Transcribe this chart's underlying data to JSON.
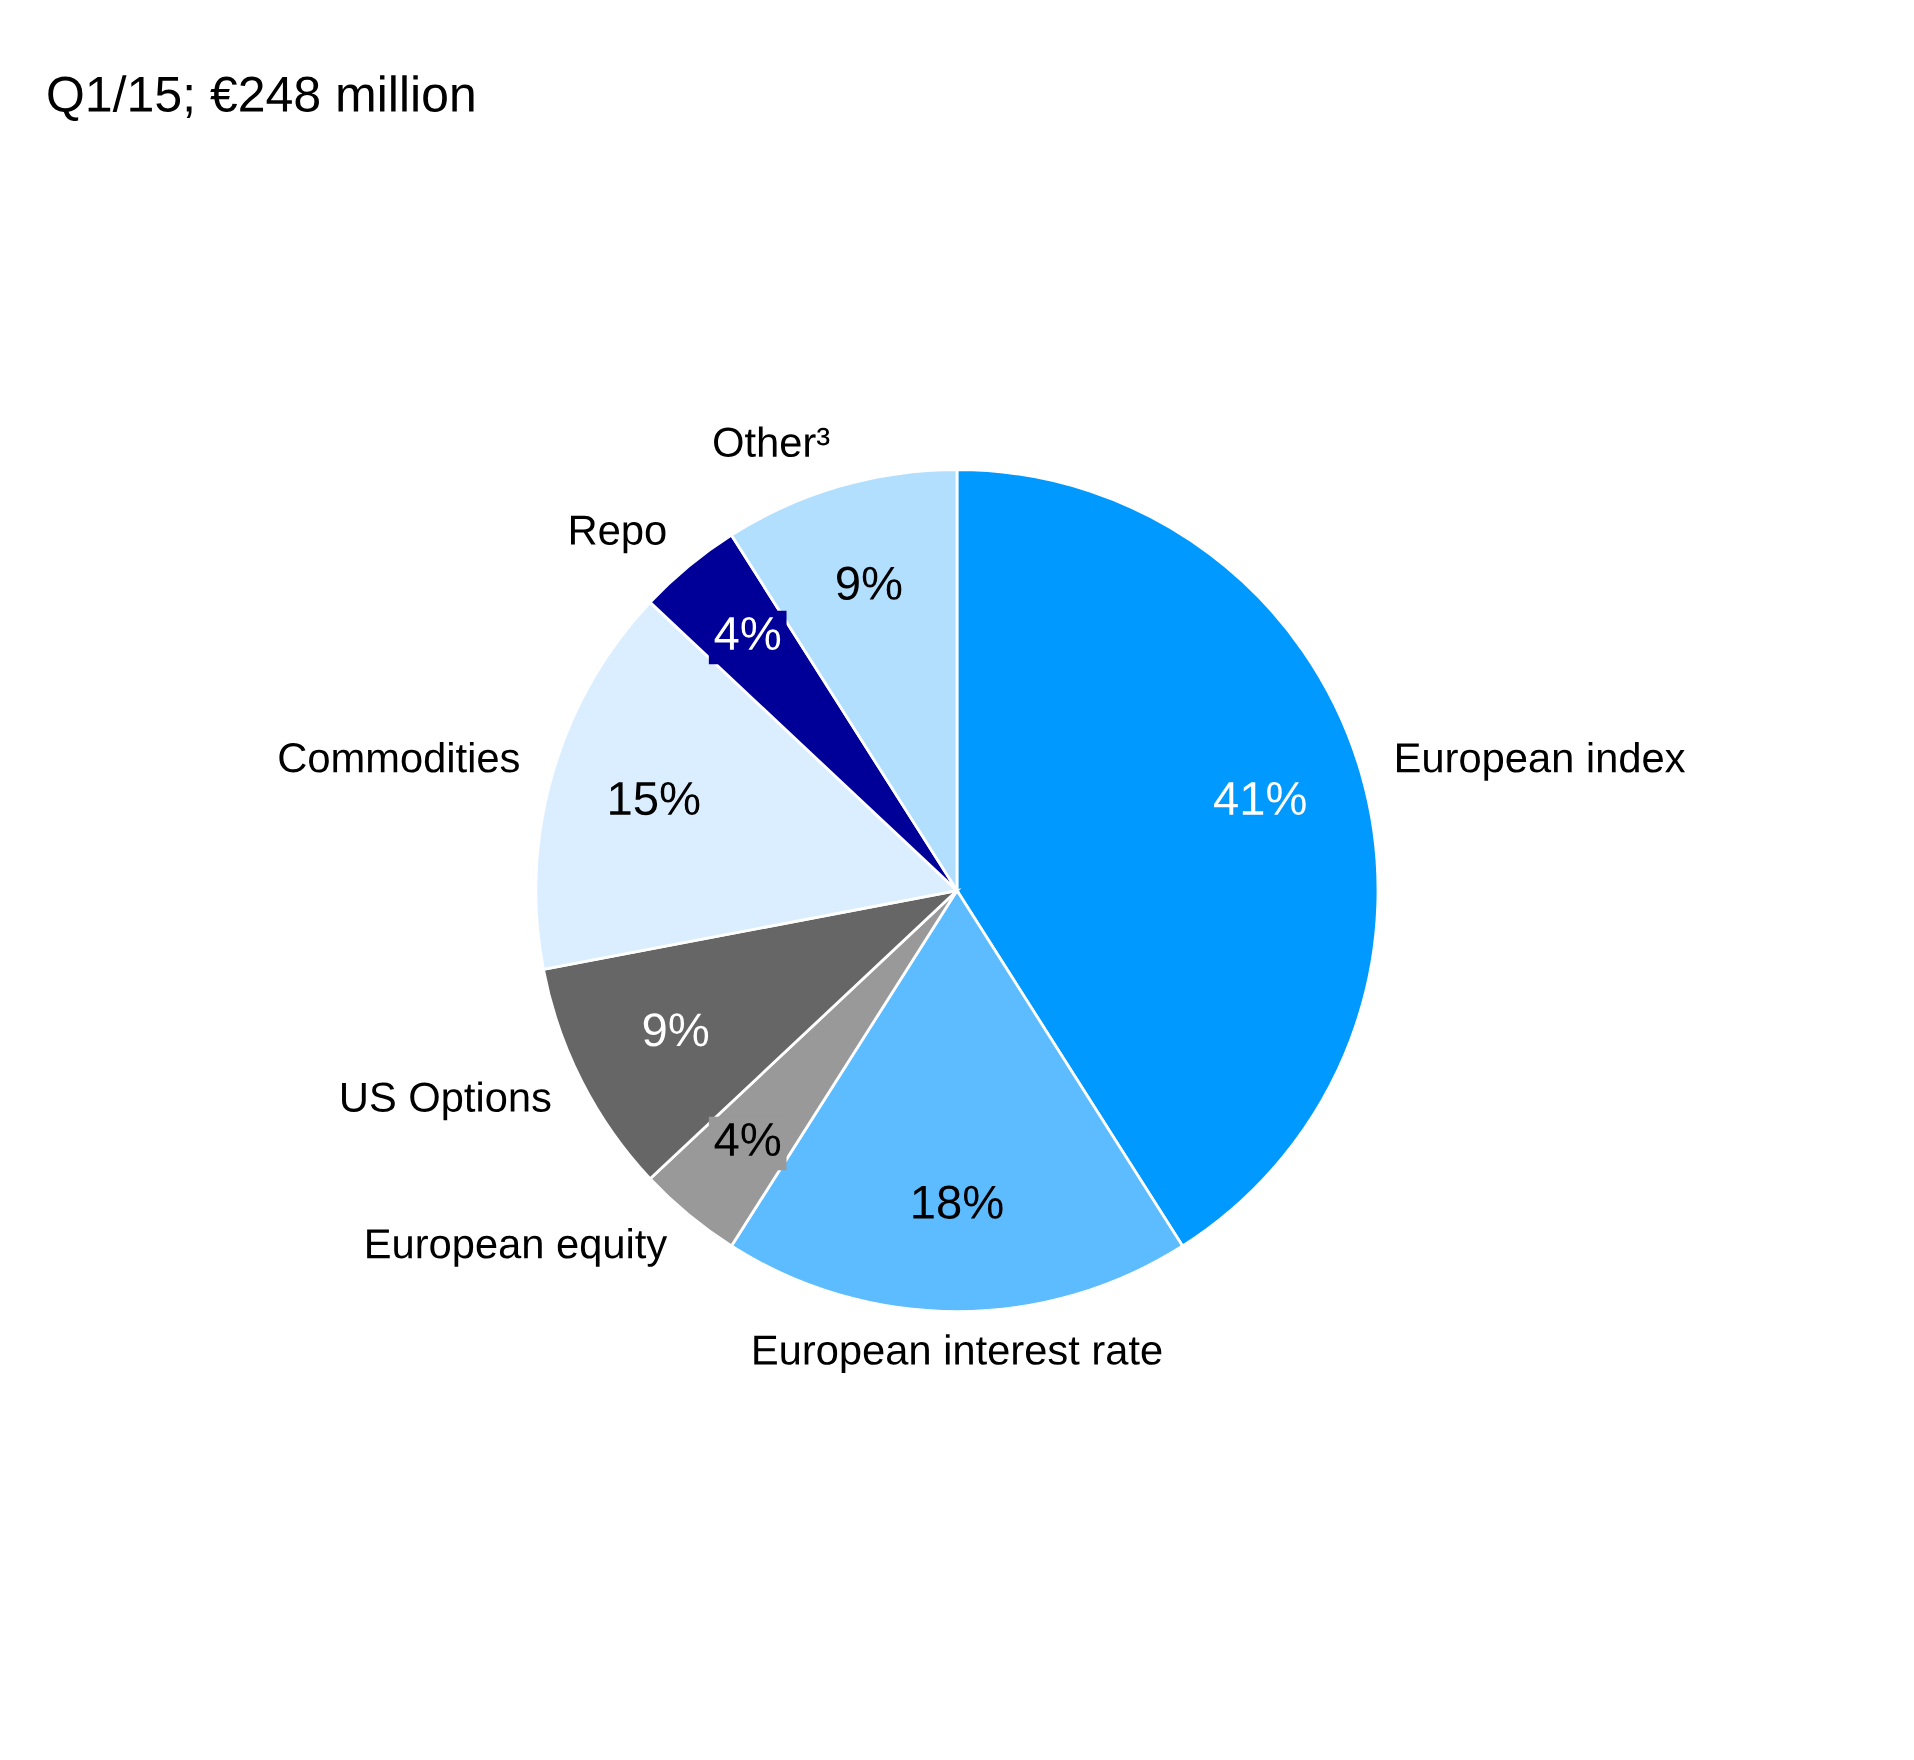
{
  "chart_data": {
    "type": "pie",
    "title": "Q1/15; €248 million",
    "categories": [
      "European index",
      "European interest rate",
      "European equity",
      "US Options",
      "Commodities",
      "Repo",
      "Other³"
    ],
    "values": [
      41,
      18,
      4,
      9,
      15,
      4,
      9
    ],
    "value_labels": [
      "41%",
      "18%",
      "4%",
      "9%",
      "15%",
      "4%",
      "9%"
    ],
    "colors": [
      "#0099ff",
      "#5cbcff",
      "#999999",
      "#666666",
      "#dbeeff",
      "#000099",
      "#b3dfff"
    ],
    "legend": false
  }
}
